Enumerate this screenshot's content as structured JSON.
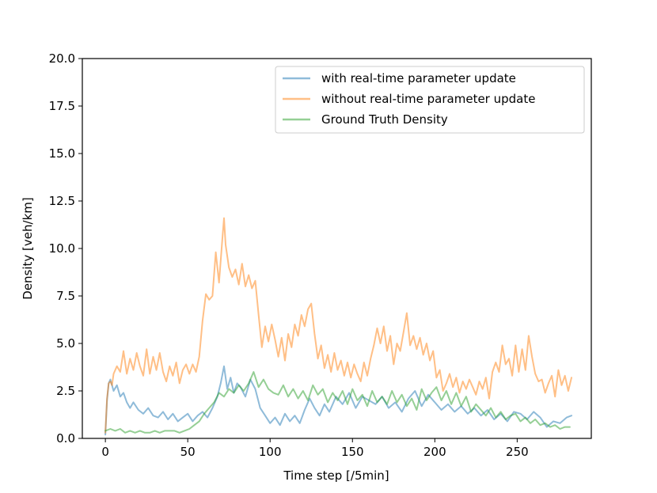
{
  "chart_data": {
    "type": "line",
    "title": "",
    "xlabel": "Time step [/5min]",
    "ylabel": "Density [veh/km]",
    "xlim": [
      -14,
      295
    ],
    "ylim": [
      0,
      20
    ],
    "xticks": [
      0,
      50,
      100,
      150,
      200,
      250
    ],
    "xtick_labels": [
      "0",
      "50",
      "100",
      "150",
      "200",
      "250"
    ],
    "yticks": [
      0,
      2.5,
      5,
      7.5,
      10,
      12.5,
      15,
      17.5,
      20
    ],
    "ytick_labels": [
      "0.0",
      "2.5",
      "5.0",
      "7.5",
      "10.0",
      "12.5",
      "15.0",
      "17.5",
      "20.0"
    ],
    "grid": false,
    "legend_position": "top-right",
    "series": [
      {
        "name": "with real-time parameter update",
        "color": "#1f77b4",
        "opacity": 0.5,
        "x": [
          0,
          1,
          2,
          3,
          4,
          5,
          7,
          9,
          11,
          13,
          15,
          17,
          20,
          23,
          26,
          29,
          32,
          35,
          38,
          41,
          44,
          47,
          50,
          53,
          56,
          59,
          62,
          65,
          68,
          70,
          72,
          74,
          76,
          78,
          80,
          82,
          85,
          88,
          91,
          94,
          97,
          100,
          103,
          106,
          109,
          112,
          115,
          118,
          121,
          124,
          127,
          130,
          133,
          136,
          140,
          144,
          148,
          152,
          156,
          160,
          164,
          168,
          172,
          176,
          180,
          184,
          188,
          192,
          196,
          200,
          204,
          208,
          212,
          216,
          220,
          224,
          228,
          232,
          236,
          240,
          244,
          248,
          252,
          256,
          260,
          264,
          268,
          272,
          276,
          280,
          283
        ],
        "y": [
          0.2,
          2.0,
          2.9,
          3.1,
          2.8,
          2.5,
          2.8,
          2.2,
          2.4,
          1.9,
          1.6,
          1.9,
          1.5,
          1.3,
          1.6,
          1.2,
          1.1,
          1.4,
          1.0,
          1.3,
          0.9,
          1.1,
          1.3,
          0.9,
          1.2,
          1.4,
          1.1,
          1.6,
          2.2,
          2.9,
          3.8,
          2.6,
          3.2,
          2.4,
          2.9,
          2.7,
          2.2,
          3.1,
          2.6,
          1.6,
          1.2,
          0.8,
          1.1,
          0.7,
          1.3,
          0.9,
          1.2,
          0.8,
          1.5,
          2.1,
          1.6,
          1.2,
          1.8,
          1.4,
          2.2,
          1.8,
          2.4,
          1.6,
          2.2,
          2.0,
          1.8,
          2.2,
          1.6,
          1.9,
          1.4,
          2.1,
          2.5,
          1.7,
          2.3,
          1.9,
          1.5,
          1.8,
          1.4,
          1.7,
          1.3,
          1.6,
          1.2,
          1.5,
          1.0,
          1.3,
          0.9,
          1.4,
          1.3,
          1.0,
          1.4,
          1.1,
          0.6,
          0.9,
          0.8,
          1.1,
          1.2
        ]
      },
      {
        "name": "without real-time parameter update",
        "color": "#ff7f0e",
        "opacity": 0.5,
        "x": [
          0,
          1,
          2,
          3,
          4,
          5,
          7,
          9,
          11,
          13,
          15,
          17,
          19,
          21,
          23,
          25,
          27,
          29,
          31,
          33,
          35,
          37,
          39,
          41,
          43,
          45,
          47,
          49,
          51,
          53,
          55,
          57,
          59,
          61,
          63,
          65,
          67,
          69,
          71,
          72,
          73,
          75,
          77,
          79,
          81,
          83,
          85,
          87,
          89,
          91,
          93,
          95,
          97,
          99,
          101,
          103,
          105,
          107,
          109,
          111,
          113,
          115,
          117,
          119,
          121,
          123,
          125,
          127,
          129,
          131,
          133,
          135,
          137,
          139,
          141,
          143,
          145,
          147,
          149,
          151,
          153,
          155,
          157,
          159,
          161,
          163,
          165,
          167,
          169,
          171,
          173,
          175,
          177,
          179,
          181,
          183,
          185,
          187,
          189,
          191,
          193,
          195,
          197,
          199,
          201,
          203,
          205,
          207,
          209,
          211,
          213,
          215,
          217,
          219,
          221,
          223,
          225,
          227,
          229,
          231,
          233,
          235,
          237,
          239,
          241,
          243,
          245,
          247,
          249,
          251,
          253,
          255,
          257,
          259,
          261,
          263,
          265,
          267,
          269,
          271,
          273,
          275,
          277,
          279,
          281,
          283
        ],
        "y": [
          0.3,
          2.1,
          2.9,
          3.0,
          2.8,
          3.4,
          3.8,
          3.5,
          4.6,
          3.4,
          4.2,
          3.6,
          4.5,
          3.8,
          3.3,
          4.7,
          3.4,
          4.3,
          3.6,
          4.5,
          3.5,
          3.0,
          3.8,
          3.3,
          4.0,
          2.9,
          3.6,
          3.9,
          3.4,
          3.9,
          3.5,
          4.3,
          6.2,
          7.6,
          7.3,
          7.5,
          9.8,
          8.2,
          10.5,
          11.6,
          10.2,
          9.0,
          8.5,
          8.9,
          8.1,
          9.2,
          8.0,
          8.6,
          7.9,
          8.3,
          6.5,
          4.8,
          5.9,
          5.1,
          6.0,
          5.2,
          4.3,
          5.3,
          4.1,
          5.5,
          4.8,
          6.0,
          5.4,
          6.5,
          5.9,
          6.8,
          7.1,
          5.5,
          4.2,
          4.9,
          3.7,
          4.4,
          3.5,
          4.5,
          3.6,
          4.1,
          3.3,
          4.0,
          3.2,
          3.9,
          3.4,
          3.0,
          4.0,
          3.3,
          4.2,
          4.9,
          5.8,
          5.0,
          5.9,
          4.6,
          5.4,
          3.9,
          5.0,
          4.6,
          5.6,
          6.6,
          4.9,
          5.4,
          4.7,
          5.3,
          4.4,
          5.0,
          4.1,
          4.6,
          3.2,
          3.6,
          2.5,
          2.9,
          3.4,
          2.7,
          3.2,
          2.4,
          3.0,
          2.6,
          3.1,
          2.7,
          2.3,
          3.0,
          2.6,
          3.2,
          2.1,
          3.5,
          4.0,
          3.5,
          4.9,
          3.9,
          4.2,
          3.3,
          4.9,
          3.5,
          4.7,
          3.6,
          5.4,
          4.3,
          3.4,
          3.0,
          3.1,
          2.4,
          2.9,
          3.3,
          2.2,
          3.6,
          2.8,
          3.3,
          2.5,
          3.2
        ]
      },
      {
        "name": "Ground Truth Density",
        "color": "#2ca02c",
        "opacity": 0.5,
        "x": [
          0,
          3,
          6,
          9,
          12,
          15,
          18,
          21,
          24,
          27,
          30,
          33,
          36,
          39,
          42,
          45,
          48,
          51,
          54,
          57,
          60,
          63,
          66,
          69,
          72,
          75,
          78,
          81,
          84,
          87,
          90,
          93,
          96,
          99,
          102,
          105,
          108,
          111,
          114,
          117,
          120,
          123,
          126,
          129,
          132,
          135,
          138,
          141,
          144,
          147,
          150,
          153,
          156,
          159,
          162,
          165,
          168,
          171,
          174,
          177,
          180,
          183,
          186,
          189,
          192,
          195,
          198,
          201,
          204,
          207,
          210,
          213,
          216,
          219,
          222,
          225,
          228,
          231,
          234,
          237,
          240,
          243,
          246,
          249,
          252,
          255,
          258,
          261,
          264,
          267,
          270,
          273,
          276,
          279,
          282
        ],
        "y": [
          0.4,
          0.5,
          0.4,
          0.5,
          0.3,
          0.4,
          0.3,
          0.4,
          0.3,
          0.3,
          0.4,
          0.3,
          0.4,
          0.4,
          0.4,
          0.3,
          0.4,
          0.5,
          0.7,
          0.9,
          1.3,
          1.6,
          1.9,
          2.4,
          2.2,
          2.6,
          2.4,
          2.8,
          2.5,
          2.9,
          3.5,
          2.7,
          3.1,
          2.6,
          2.4,
          2.3,
          2.8,
          2.2,
          2.6,
          2.1,
          2.5,
          2.0,
          2.8,
          2.3,
          2.6,
          1.9,
          2.4,
          2.0,
          2.5,
          1.8,
          2.6,
          2.0,
          2.3,
          1.7,
          2.5,
          1.9,
          2.2,
          1.8,
          2.5,
          1.9,
          2.3,
          1.7,
          2.1,
          1.5,
          2.6,
          2.0,
          2.4,
          2.7,
          2.0,
          2.5,
          1.8,
          2.4,
          1.7,
          2.2,
          1.4,
          1.8,
          1.5,
          1.2,
          1.6,
          1.1,
          1.4,
          1.0,
          1.2,
          1.3,
          0.9,
          1.1,
          0.8,
          1.0,
          0.7,
          0.8,
          0.6,
          0.7,
          0.5,
          0.6,
          0.6
        ]
      }
    ]
  }
}
